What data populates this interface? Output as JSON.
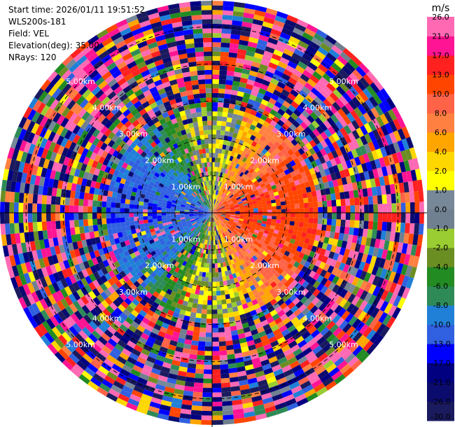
{
  "info": {
    "start_time": "Start time: 2026/01/11 19:51:52",
    "instrument": "WLS200s-181",
    "field": "Field: VEL",
    "elevation": "Elevation(deg): 35.00",
    "nrays": "NRays: 120"
  },
  "chart_data": {
    "type": "heatmap",
    "projection": "polar-ppi",
    "field": "VEL",
    "units": "m/s",
    "nrays": 120,
    "range_rings_km": [
      "1.00km",
      "2.00km",
      "3.00km",
      "4.00km",
      "5.00km"
    ],
    "range_rings_values": [
      1,
      2,
      3,
      4,
      5
    ],
    "max_range_km": 5.7,
    "colorbar": {
      "title": "m/s",
      "levels": [
        -30.0,
        -26.0,
        -21.0,
        -17.0,
        -13.0,
        -10.0,
        -8.0,
        -6.0,
        -4.0,
        -2.0,
        -1.0,
        0.0,
        1.0,
        2.0,
        4.0,
        6.0,
        8.0,
        10.0,
        13.0,
        17.0,
        21.0,
        26.0
      ],
      "tick_labels": [
        "-30.0",
        "-26.0",
        "-21.0",
        "-17.0",
        "-13.0",
        "-10.0",
        "-8.0",
        "-6.0",
        "-4.0",
        "-2.0",
        "-1.0",
        "0.0",
        "1.0",
        "2.0",
        "4.0",
        "6.0",
        "8.0",
        "10.0",
        "13.0",
        "17.0",
        "21.0",
        "26.0"
      ],
      "colors": [
        "#1a1a5e",
        "#0b0b6e",
        "#000080",
        "#0000ff",
        "#3060e0",
        "#2080d8",
        "#2e8b57",
        "#228b22",
        "#6b8e23",
        "#9acd32",
        "#708090",
        "#778899",
        "#ffff00",
        "#ffd700",
        "#ffa500",
        "#ff8040",
        "#ff6347",
        "#ff4500",
        "#ff2020",
        "#ff1493",
        "#ff69b4"
      ]
    },
    "pattern": "inner region: negative (blue) velocities to the west, positive (red/orange/yellow) to the east; outer region noisy"
  }
}
